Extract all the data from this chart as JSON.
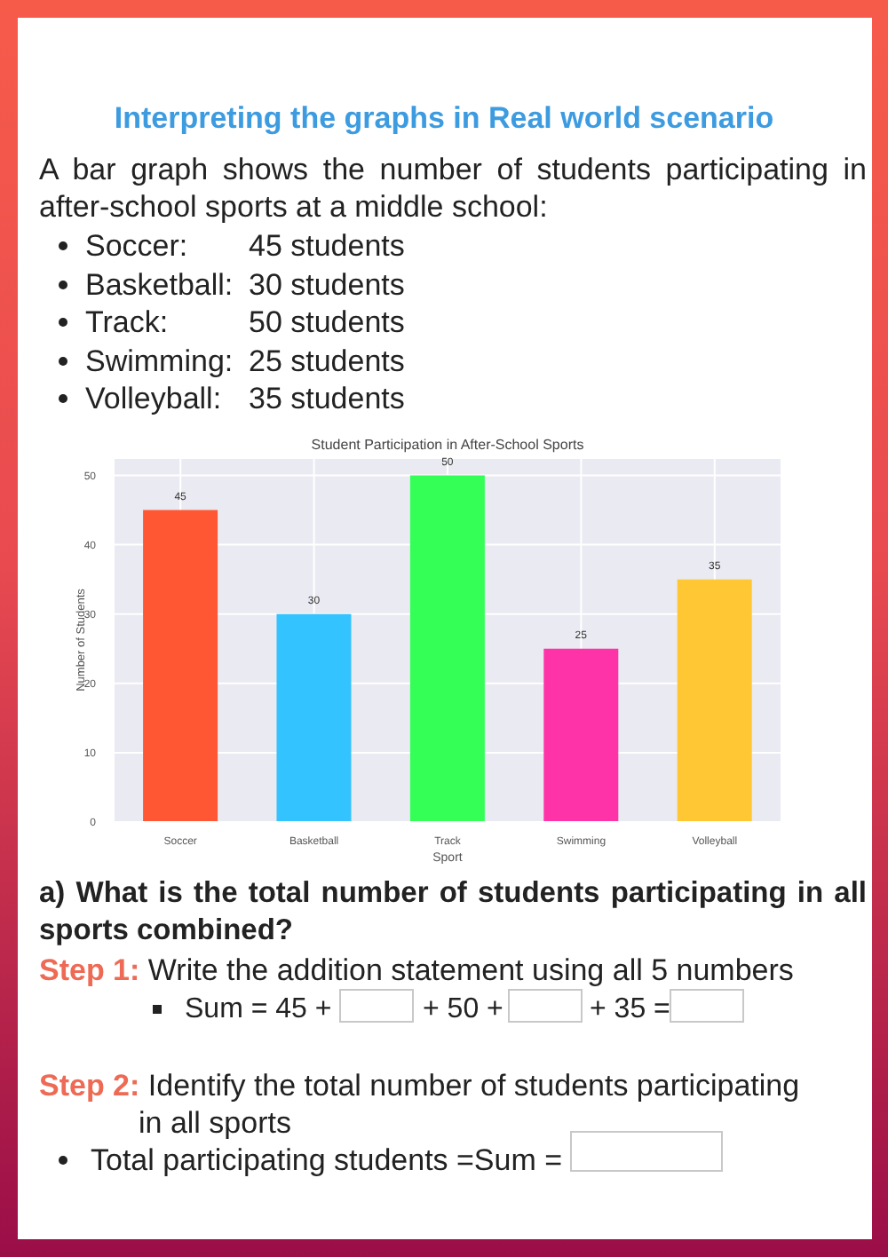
{
  "chart_data": {
    "type": "bar",
    "title": "Student Participation in After-School Sports",
    "xlabel": "Sport",
    "ylabel": "Number of Students",
    "categories": [
      "Soccer",
      "Basketball",
      "Track",
      "Swimming",
      "Volleyball"
    ],
    "values": [
      45,
      30,
      50,
      25,
      35
    ],
    "colors": [
      "#ff5733",
      "#33c3ff",
      "#33ff57",
      "#ff33a8",
      "#ffc733"
    ],
    "ylim": [
      0,
      52.5
    ],
    "yticks": [
      0,
      10,
      20,
      30,
      40,
      50
    ],
    "grid": true,
    "data_labels": true,
    "annotations": [
      "Interpreting the graphs in Real world scenario",
      "A bar graph shows the number of students participating in after-school sports at a middle school:",
      "Soccer:\t45 students",
      "Basketball:\t30 students",
      "Track:\t50 students",
      "Swimming:\t25 students",
      "Volleyball:\t35 students",
      "a) What is the total number of students participating in all sports combined?",
      "Step 1:\tWrite the addition statement using all 5 numbers",
      "Sum = 45 +\t+ 50 +\t+ 35 =\t",
      "Step 2:\tIdentify the total number of students participating in all sports",
      "Total participating students =Sum =\t"
    ]
  }
}
